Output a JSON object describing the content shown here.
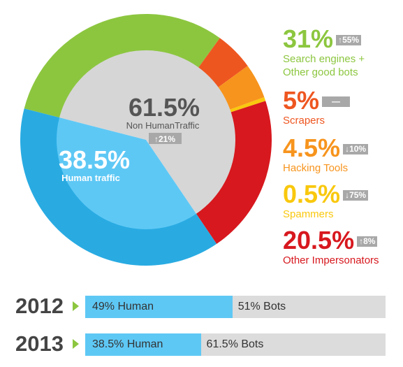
{
  "chart_data": [
    {
      "type": "pie",
      "center_label": {
        "value": "61.5%",
        "text": "Non HumanTraffic",
        "change": "21%",
        "direction": "up"
      },
      "inner_slices": [
        {
          "name": "Human traffic",
          "value": 38.5,
          "label": "38.5%",
          "color": "#5ec8f5"
        },
        {
          "name": "Non HumanTraffic",
          "value": 61.5,
          "label": "61.5%",
          "color": "#d6d6d6"
        }
      ],
      "outer_ring": [
        {
          "name": "Search engines + Other good bots",
          "value": 31,
          "color": "#8cc63f"
        },
        {
          "name": "Scrapers",
          "value": 5,
          "color": "#ee5620"
        },
        {
          "name": "Hacking Tools",
          "value": 4.5,
          "color": "#f7941d"
        },
        {
          "name": "Spammers",
          "value": 0.5,
          "color": "#f9c80e"
        },
        {
          "name": "Other Impersonators",
          "value": 20.5,
          "color": "#d7181e"
        },
        {
          "name": "Human traffic",
          "value": 38.5,
          "color": "#29abe2"
        }
      ],
      "legend": [
        {
          "pct": "31%",
          "badge": "↑55%",
          "label_lines": [
            "Search engines +",
            "Other good bots"
          ],
          "color": "#8cc63f"
        },
        {
          "pct": "5%",
          "badge": "—",
          "label_lines": [
            "Scrapers"
          ],
          "color": "#ee5620"
        },
        {
          "pct": "4.5%",
          "badge": "↓10%",
          "label_lines": [
            "Hacking Tools"
          ],
          "color": "#f7941d"
        },
        {
          "pct": "0.5%",
          "badge": "↓75%",
          "label_lines": [
            "Spammers"
          ],
          "color": "#f9c80e"
        },
        {
          "pct": "20.5%",
          "badge": "↑8%",
          "label_lines": [
            "Other Impersonators"
          ],
          "color": "#d7181e"
        }
      ]
    },
    {
      "type": "bar",
      "orientation": "horizontal",
      "stacked": true,
      "categories": [
        "2012",
        "2013"
      ],
      "series": [
        {
          "name": "Human",
          "values": [
            49,
            38.5
          ],
          "labels": [
            "49% Human",
            "38.5% Human"
          ],
          "color": "#5ec8f5"
        },
        {
          "name": "Bots",
          "values": [
            51,
            61.5
          ],
          "labels": [
            "51% Bots",
            "61.5% Bots"
          ],
          "color": "#dcdcdc"
        }
      ],
      "xlim": [
        0,
        100
      ]
    }
  ],
  "pie_text": {
    "human_pct": "38.5%",
    "human_label": "Human traffic",
    "nonhuman_pct": "61.5%",
    "nonhuman_label": "Non HumanTraffic",
    "nonhuman_badge": "↑21%"
  }
}
